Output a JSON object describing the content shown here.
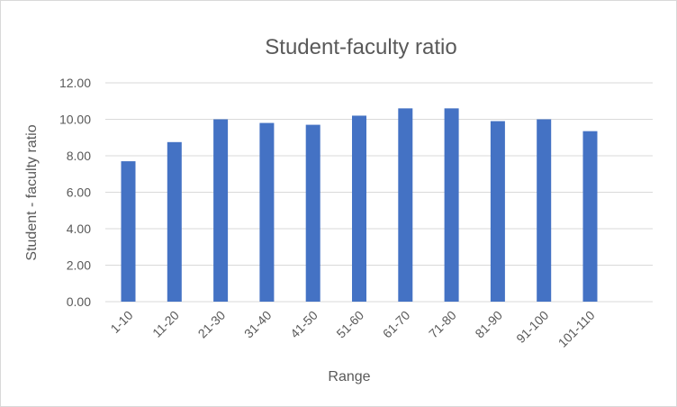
{
  "chart_data": {
    "type": "bar",
    "title": "Student-faculty ratio",
    "xlabel": "Range",
    "ylabel": "Student - faculty ratio",
    "categories": [
      "1-10",
      "11-20",
      "21-30",
      "31-40",
      "41-50",
      "51-60",
      "61-70",
      "71-80",
      "81-90",
      "91-100",
      "101-110"
    ],
    "values": [
      7.7,
      8.75,
      10.0,
      9.8,
      9.7,
      10.2,
      10.6,
      10.6,
      9.9,
      10.0,
      9.35
    ],
    "ylim": [
      0,
      12
    ],
    "yticks": [
      "0.00",
      "2.00",
      "4.00",
      "6.00",
      "8.00",
      "10.00",
      "12.00"
    ],
    "grid": true,
    "legend": "none",
    "colors": {
      "bar": "#4472c4",
      "grid": "#d9d9d9",
      "text": "#595959"
    }
  }
}
